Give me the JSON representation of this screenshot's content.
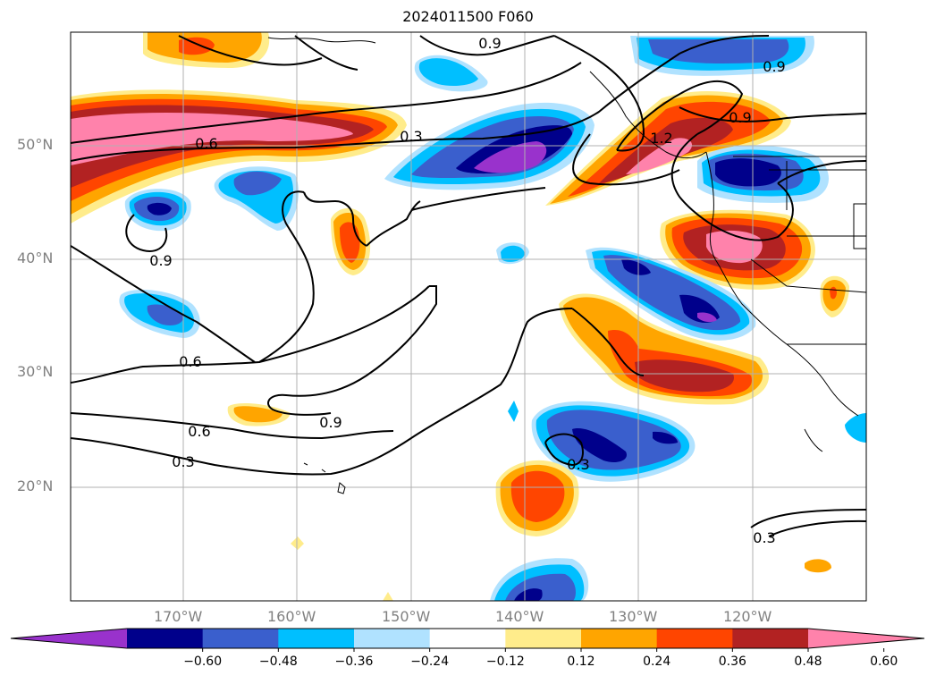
{
  "title": "2024011500 F060",
  "map": {
    "lon_range": [
      180,
      110
    ],
    "lat_range": [
      10,
      60
    ],
    "lat_labels": [
      "50°N",
      "40°N",
      "30°N",
      "20°N"
    ],
    "lon_labels": [
      "170°W",
      "160°W",
      "150°W",
      "140°W",
      "130°W",
      "120°W"
    ],
    "contour_labels": [
      "0.9",
      "0.9",
      "0.6",
      "0.3",
      "0.9",
      "0.9",
      "0.6",
      "0.6",
      "0.9",
      "0.3",
      "0.3",
      "0.3",
      "1.2"
    ]
  },
  "colorbar": {
    "ticks": [
      "−0.60",
      "−0.48",
      "−0.36",
      "−0.24",
      "−0.12",
      "0.12",
      "0.24",
      "0.36",
      "0.48",
      "0.60"
    ],
    "colors": [
      "#9932cc",
      "#00008b",
      "#3a5fcd",
      "#00bfff",
      "#b0e2ff",
      "#ffffff",
      "#ffec8b",
      "#ffa500",
      "#ff4500",
      "#b22222",
      "#ff82ab"
    ]
  }
}
